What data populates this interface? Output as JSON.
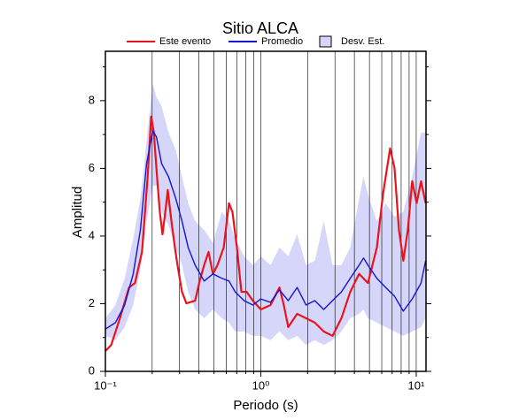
{
  "chart_data": {
    "type": "line",
    "title": "Sitio ALCA",
    "x_label": "Periodo (s)",
    "y_label": "Amplitud",
    "xlim": [
      0.1,
      11.56
    ],
    "ylim": [
      0,
      9.46
    ],
    "log_x": true,
    "grid": true,
    "xticks": [
      {
        "value": 0.1,
        "label": "10⁻¹"
      },
      {
        "value": 1,
        "label": "10⁰"
      },
      {
        "value": 10,
        "label": "10¹"
      }
    ],
    "xminorticks": [
      0.2,
      0.3,
      0.4,
      0.5,
      0.6,
      0.7,
      0.8,
      0.9,
      2,
      3,
      4,
      5,
      6,
      7,
      8,
      9
    ],
    "yticks": [
      0,
      2,
      4,
      6,
      8
    ],
    "yminorticks": [
      1,
      3,
      5,
      7,
      9
    ],
    "band": {
      "name": "Desv. Est.",
      "color": "#d6d6fa",
      "x": [
        0.1,
        0.116,
        0.133,
        0.151,
        0.168,
        0.184,
        0.202,
        0.213,
        0.23,
        0.255,
        0.284,
        0.311,
        0.341,
        0.378,
        0.432,
        0.492,
        0.561,
        0.624,
        0.684,
        0.78,
        0.889,
        1.0,
        1.155,
        1.318,
        1.502,
        1.713,
        1.953,
        2.226,
        2.539,
        2.895,
        3.301,
        3.763,
        4.29,
        4.58,
        4.89,
        5.58,
        6.36,
        7.25,
        8.26,
        9.42,
        10.74,
        11.5
      ],
      "upper": [
        1.57,
        1.96,
        2.75,
        3.92,
        5.1,
        6.8,
        8.5,
        8.1,
        7.84,
        7.06,
        6.54,
        5.75,
        4.97,
        4.44,
        4.18,
        3.79,
        4.71,
        4.44,
        3.92,
        3.4,
        3.14,
        3.4,
        3.14,
        3.66,
        3.4,
        4.05,
        3.14,
        3.27,
        4.44,
        3.14,
        3.14,
        3.66,
        5.1,
        5.75,
        5.23,
        4.44,
        4.97,
        4.58,
        4.71,
        5.75,
        7.06,
        7.06
      ],
      "lower": [
        1.05,
        0.92,
        1.31,
        1.96,
        3.01,
        4.44,
        5.49,
        5.49,
        4.71,
        4.31,
        3.66,
        3.14,
        2.35,
        1.83,
        1.57,
        1.83,
        1.57,
        1.44,
        1.18,
        1.18,
        1.05,
        1.05,
        0.92,
        1.18,
        0.92,
        1.05,
        0.78,
        0.92,
        0.78,
        0.92,
        1.18,
        1.57,
        1.7,
        1.83,
        1.57,
        1.44,
        1.31,
        1.18,
        1.05,
        1.18,
        1.31,
        1.57
      ]
    },
    "series": [
      {
        "name": "Este evento",
        "color": "#e8141c",
        "x": [
          0.1,
          0.109,
          0.124,
          0.142,
          0.155,
          0.172,
          0.187,
          0.197,
          0.205,
          0.216,
          0.224,
          0.233,
          0.243,
          0.252,
          0.266,
          0.28,
          0.291,
          0.311,
          0.332,
          0.378,
          0.404,
          0.432,
          0.461,
          0.492,
          0.526,
          0.577,
          0.624,
          0.657,
          0.702,
          0.75,
          0.811,
          0.889,
          1.0,
          1.155,
          1.318,
          1.406,
          1.502,
          1.713,
          1.953,
          2.226,
          2.539,
          2.895,
          3.301,
          3.763,
          4.29,
          4.89,
          5.58,
          6.11,
          6.79,
          7.25,
          7.74,
          8.26,
          8.83,
          9.42,
          10.06,
          10.74,
          11.5
        ],
        "values": [
          0.6,
          0.78,
          1.57,
          2.48,
          2.61,
          3.53,
          5.75,
          7.53,
          7.06,
          5.62,
          4.71,
          4.05,
          4.71,
          5.36,
          4.44,
          3.66,
          3.14,
          2.35,
          2.01,
          2.09,
          2.67,
          3.14,
          3.53,
          2.88,
          3.14,
          3.66,
          4.97,
          4.71,
          3.66,
          2.35,
          2.35,
          2.09,
          1.83,
          1.96,
          2.48,
          1.96,
          1.31,
          1.7,
          1.57,
          1.44,
          1.18,
          1.05,
          1.57,
          2.35,
          2.88,
          2.61,
          3.66,
          5.23,
          6.59,
          6.01,
          4.18,
          3.27,
          4.18,
          5.62,
          4.97,
          5.62,
          4.97
        ]
      },
      {
        "name": "Promedio",
        "color": "#1414d2",
        "x": [
          0.1,
          0.116,
          0.133,
          0.151,
          0.168,
          0.184,
          0.202,
          0.213,
          0.23,
          0.255,
          0.284,
          0.311,
          0.341,
          0.378,
          0.432,
          0.492,
          0.561,
          0.624,
          0.684,
          0.78,
          0.889,
          1.0,
          1.155,
          1.318,
          1.502,
          1.713,
          1.953,
          2.226,
          2.539,
          2.895,
          3.301,
          3.763,
          4.29,
          4.58,
          4.89,
          5.58,
          6.36,
          7.25,
          8.26,
          9.42,
          10.74,
          11.5
        ],
        "values": [
          1.25,
          1.44,
          1.96,
          2.88,
          4.18,
          6.14,
          7.11,
          6.93,
          6.14,
          5.75,
          5.1,
          4.44,
          3.66,
          3.14,
          2.67,
          2.88,
          2.75,
          2.67,
          2.35,
          2.09,
          1.96,
          2.14,
          2.04,
          2.41,
          2.09,
          2.48,
          1.96,
          2.09,
          1.83,
          2.09,
          2.35,
          2.75,
          3.14,
          3.35,
          3.14,
          2.75,
          2.48,
          2.22,
          1.78,
          2.14,
          2.61,
          3.27
        ]
      }
    ]
  }
}
